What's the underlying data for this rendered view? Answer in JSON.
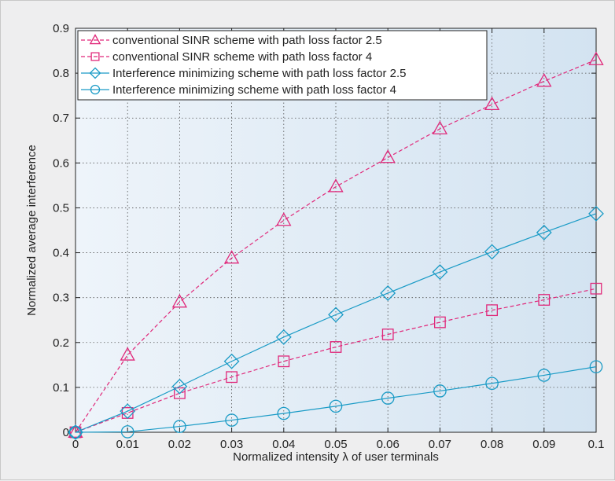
{
  "chart_data": {
    "type": "line",
    "title": "",
    "xlabel": "Normalized intensity λ of user terminals",
    "ylabel": "Normalized average interference",
    "xlim": [
      0,
      0.1
    ],
    "ylim": [
      0,
      0.9
    ],
    "x_ticks": [
      "0",
      "0.01",
      "0.02",
      "0.03",
      "0.04",
      "0.05",
      "0.06",
      "0.07",
      "0.08",
      "0.09",
      "0.1"
    ],
    "y_ticks": [
      "0",
      "0.1",
      "0.2",
      "0.3",
      "0.4",
      "0.5",
      "0.6",
      "0.7",
      "0.8",
      "0.9"
    ],
    "x": [
      0,
      0.01,
      0.02,
      0.03,
      0.04,
      0.05,
      0.06,
      0.07,
      0.08,
      0.09,
      0.1
    ],
    "grid": true,
    "legend_position": "top-left",
    "series": [
      {
        "name": "conventional SINR scheme with path loss factor 2.5",
        "values": [
          0,
          0.172,
          0.29,
          0.388,
          0.472,
          0.547,
          0.612,
          0.676,
          0.73,
          0.782,
          0.83
        ],
        "color": "#e0287a",
        "marker": "triangle",
        "dash": true
      },
      {
        "name": "conventional SINR scheme with path loss factor 4",
        "values": [
          0,
          0.043,
          0.087,
          0.123,
          0.158,
          0.19,
          0.218,
          0.245,
          0.272,
          0.295,
          0.32
        ],
        "color": "#e0287a",
        "marker": "square",
        "dash": true
      },
      {
        "name": "Interference minimizing scheme with path loss factor 2.5",
        "values": [
          0,
          0.047,
          0.102,
          0.158,
          0.212,
          0.262,
          0.31,
          0.357,
          0.402,
          0.445,
          0.487
        ],
        "color": "#1a9bc6",
        "marker": "diamond",
        "dash": false
      },
      {
        "name": "Interference minimizing scheme with path loss factor 4",
        "values": [
          0,
          0.001,
          0.013,
          0.027,
          0.042,
          0.058,
          0.076,
          0.092,
          0.109,
          0.127,
          0.146
        ],
        "color": "#1a9bc6",
        "marker": "circle",
        "dash": false
      }
    ]
  }
}
